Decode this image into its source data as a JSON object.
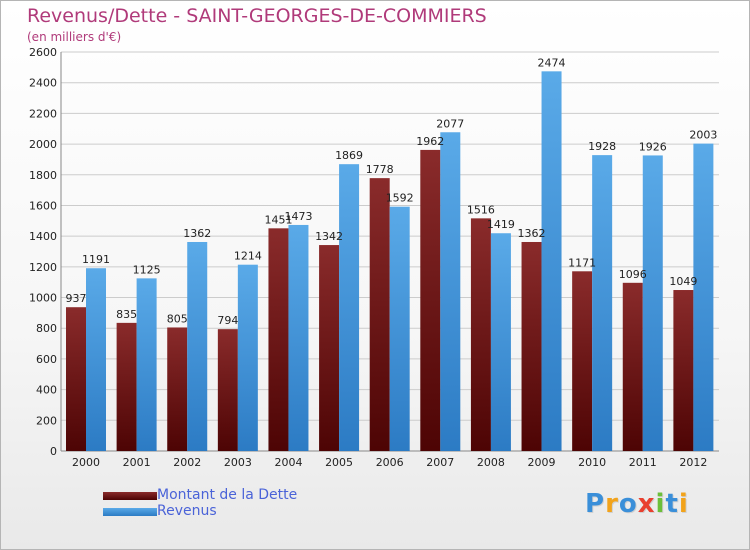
{
  "colors": {
    "debt_top": "#8a2b2b",
    "debt_bottom": "#4d0404",
    "revenue_top": "#5aaae8",
    "revenue_bottom": "#2c7bc4",
    "title": "#b03a7a",
    "legend_text": "#4a63d8",
    "grid": "#cccccc"
  },
  "logo": {
    "text": "Proxiti",
    "letters": [
      "P",
      "r",
      "o",
      "x",
      "i",
      "t",
      "i"
    ],
    "colors": [
      "#3a8fd9",
      "#f2a31b",
      "#3a8fd9",
      "#e9402f",
      "#6cbf3a",
      "#3a8fd9",
      "#f2a31b"
    ]
  },
  "chart_data": {
    "type": "bar",
    "title": "Revenus/Dette - SAINT-GEORGES-DE-COMMIERS",
    "subtitle": "(en milliers d'€)",
    "categories": [
      "2000",
      "2001",
      "2002",
      "2003",
      "2004",
      "2005",
      "2006",
      "2007",
      "2008",
      "2009",
      "2010",
      "2011",
      "2012"
    ],
    "series": [
      {
        "name": "Montant de la Dette",
        "values": [
          937,
          835,
          805,
          794,
          1451,
          1342,
          1778,
          1962,
          1516,
          1362,
          1171,
          1096,
          1049
        ],
        "labels": [
          "937",
          "835",
          "805",
          "794",
          "1451",
          "1342",
          "1778",
          "1962",
          "1516",
          "1362",
          "1171",
          "1096",
          "1049"
        ]
      },
      {
        "name": "Revenus",
        "values": [
          1191,
          1125,
          1362,
          1214,
          1473,
          1869,
          1592,
          2077,
          1419,
          2474,
          1928,
          1926,
          2003
        ],
        "labels": [
          "1191",
          "1125",
          "1362",
          "1214",
          "1473",
          "1869",
          "1592",
          "2077",
          "1419",
          "2474",
          "1928",
          "1926",
          "2003"
        ]
      }
    ],
    "y_ticks": [
      "0",
      "200",
      "400",
      "600",
      "800",
      "1000",
      "1200",
      "1400",
      "1600",
      "1800",
      "2000",
      "2200",
      "2400",
      "2600"
    ],
    "ylim": [
      0,
      2600
    ],
    "grid": true,
    "legend_position": "bottom-left"
  }
}
